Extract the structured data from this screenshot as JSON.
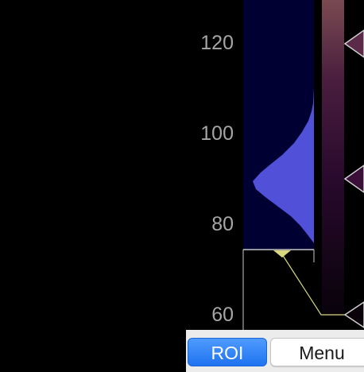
{
  "histogram_panel": {
    "y_axis_ticks": [
      "120",
      "100",
      "80",
      "60"
    ],
    "background_color": "#000033",
    "histogram_color": "#5050d8",
    "transfer_line_color": "#d8d880",
    "colormap_colors": [
      "#4a1e3e",
      "#2a0a2e",
      "#0c0410"
    ]
  },
  "buttons": {
    "roi_label": "ROI",
    "menu_label": "Menu"
  },
  "colors": {
    "accent": "#2a7df5",
    "bar_background": "#ececec"
  }
}
